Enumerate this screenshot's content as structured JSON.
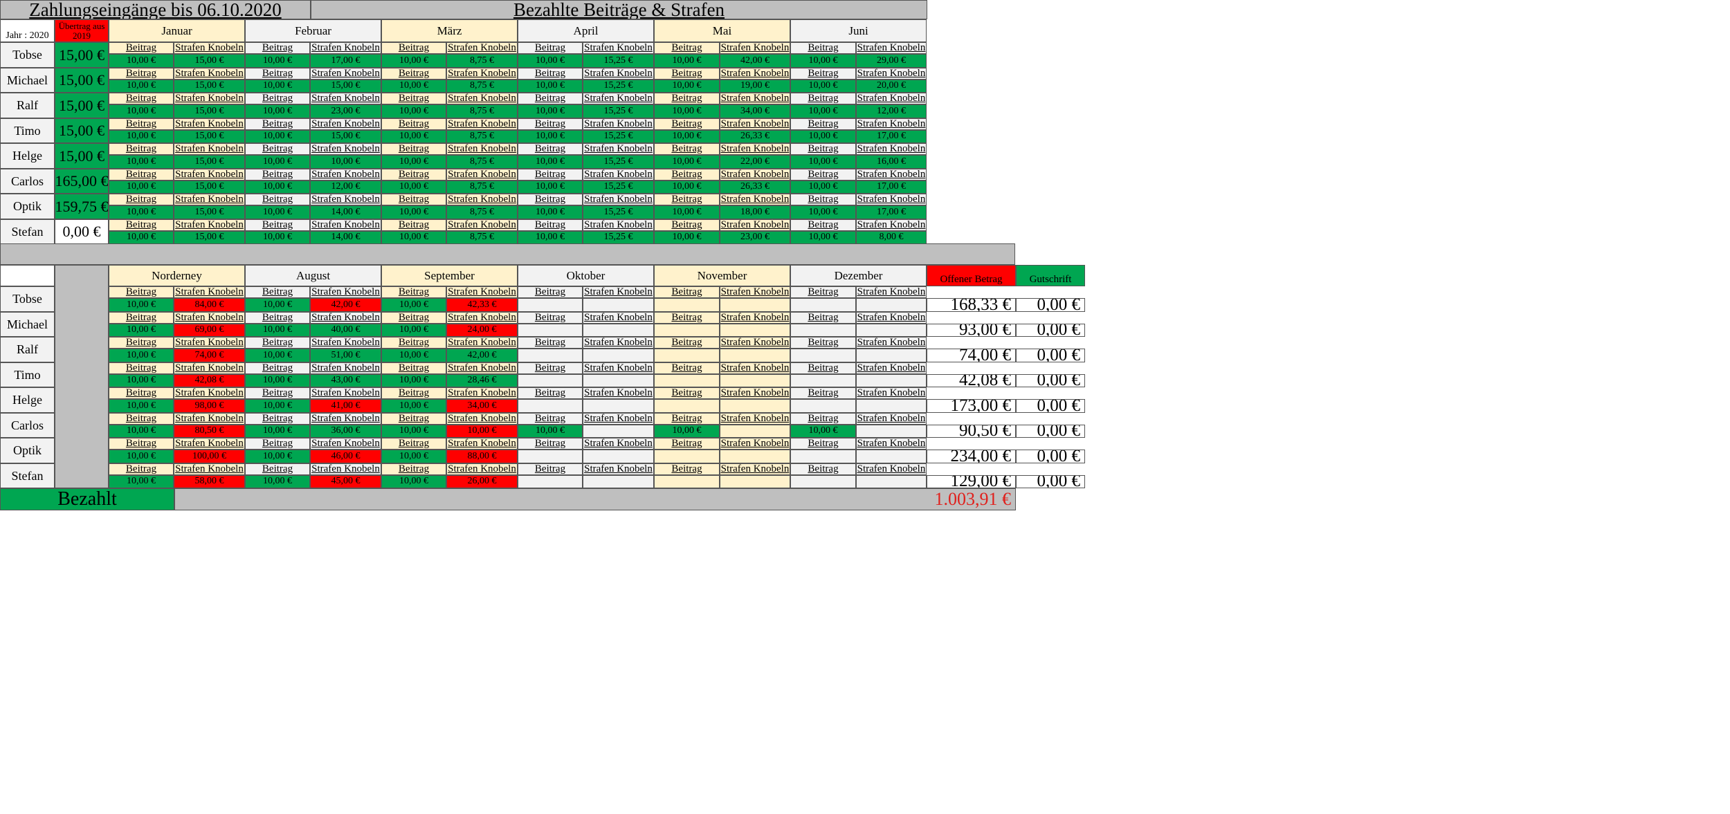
{
  "title_left": "Zahlungseingänge bis 06.10.2020",
  "title_right": "Bezahlte Beiträge & Strafen",
  "jahr_label": "Jahr : 2020",
  "uebertrag_label": "Übertrag aus 2019",
  "sub_beitrag": "Beitrag",
  "sub_strafen": "Strafen Knobeln",
  "offener_label": "Offener Betrag",
  "gutschrift_label": "Gutschrift",
  "bezahlt_label": "Bezahlt",
  "bezahlt_total": "1.003,91 €",
  "colors": {
    "green": "#00a651",
    "red": "#ff0000",
    "cream": "#fff2cc",
    "lightgray": "#f2f2f2",
    "gray": "#bfbfbf",
    "dark_red_text": "#e0201c"
  },
  "months_top": [
    "Januar",
    "Februar",
    "März",
    "April",
    "Mai",
    "Juni"
  ],
  "months_bottom": [
    "Norderney",
    "August",
    "September",
    "Oktober",
    "November",
    "Dezember"
  ],
  "top_rows": [
    {
      "name": "Tobse",
      "uebertrag": "15,00 €",
      "uebertrag_status": "green",
      "values": [
        [
          "10,00 €",
          "15,00 €"
        ],
        [
          "10,00 €",
          "17,00 €"
        ],
        [
          "10,00 €",
          "8,75 €"
        ],
        [
          "10,00 €",
          "15,25 €"
        ],
        [
          "10,00 €",
          "42,00 €"
        ],
        [
          "10,00 €",
          "29,00 €"
        ]
      ]
    },
    {
      "name": "Michael",
      "uebertrag": "15,00 €",
      "uebertrag_status": "green",
      "values": [
        [
          "10,00 €",
          "15,00 €"
        ],
        [
          "10,00 €",
          "15,00 €"
        ],
        [
          "10,00 €",
          "8,75 €"
        ],
        [
          "10,00 €",
          "15,25 €"
        ],
        [
          "10,00 €",
          "19,00 €"
        ],
        [
          "10,00 €",
          "20,00 €"
        ]
      ]
    },
    {
      "name": "Ralf",
      "uebertrag": "15,00 €",
      "uebertrag_status": "green",
      "values": [
        [
          "10,00 €",
          "15,00 €"
        ],
        [
          "10,00 €",
          "23,00 €"
        ],
        [
          "10,00 €",
          "8,75 €"
        ],
        [
          "10,00 €",
          "15,25 €"
        ],
        [
          "10,00 €",
          "34,00 €"
        ],
        [
          "10,00 €",
          "12,00 €"
        ]
      ]
    },
    {
      "name": "Timo",
      "uebertrag": "15,00 €",
      "uebertrag_status": "green",
      "values": [
        [
          "10,00 €",
          "15,00 €"
        ],
        [
          "10,00 €",
          "15,00 €"
        ],
        [
          "10,00 €",
          "8,75 €"
        ],
        [
          "10,00 €",
          "15,25 €"
        ],
        [
          "10,00 €",
          "26,33 €"
        ],
        [
          "10,00 €",
          "17,00 €"
        ]
      ]
    },
    {
      "name": "Helge",
      "uebertrag": "15,00 €",
      "uebertrag_status": "green",
      "values": [
        [
          "10,00 €",
          "15,00 €"
        ],
        [
          "10,00 €",
          "10,00 €"
        ],
        [
          "10,00 €",
          "8,75 €"
        ],
        [
          "10,00 €",
          "15,25 €"
        ],
        [
          "10,00 €",
          "22,00 €"
        ],
        [
          "10,00 €",
          "16,00 €"
        ]
      ]
    },
    {
      "name": "Carlos",
      "uebertrag": "165,00 €",
      "uebertrag_status": "green",
      "values": [
        [
          "10,00 €",
          "15,00 €"
        ],
        [
          "10,00 €",
          "12,00 €"
        ],
        [
          "10,00 €",
          "8,75 €"
        ],
        [
          "10,00 €",
          "15,25 €"
        ],
        [
          "10,00 €",
          "26,33 €"
        ],
        [
          "10,00 €",
          "17,00 €"
        ]
      ]
    },
    {
      "name": "Optik",
      "uebertrag": "159,75 €",
      "uebertrag_status": "green",
      "values": [
        [
          "10,00 €",
          "15,00 €"
        ],
        [
          "10,00 €",
          "14,00 €"
        ],
        [
          "10,00 €",
          "8,75 €"
        ],
        [
          "10,00 €",
          "15,25 €"
        ],
        [
          "10,00 €",
          "18,00 €"
        ],
        [
          "10,00 €",
          "17,00 €"
        ]
      ]
    },
    {
      "name": "Stefan",
      "uebertrag": "0,00 €",
      "uebertrag_status": "plain",
      "values": [
        [
          "10,00 €",
          "15,00 €"
        ],
        [
          "10,00 €",
          "14,00 €"
        ],
        [
          "10,00 €",
          "8,75 €"
        ],
        [
          "10,00 €",
          "15,25 €"
        ],
        [
          "10,00 €",
          "23,00 €"
        ],
        [
          "10,00 €",
          "8,00 €"
        ]
      ]
    }
  ],
  "bottom_rows": [
    {
      "name": "Tobse",
      "offen": "168,33 €",
      "gutschrift": "0,00 €",
      "cells": [
        [
          "10,00 €",
          "green",
          "84,00 €",
          "red"
        ],
        [
          "10,00 €",
          "green",
          "42,00 €",
          "red"
        ],
        [
          "10,00 €",
          "green",
          "42,33 €",
          "red"
        ],
        [
          "",
          "empty",
          "",
          "empty"
        ],
        [
          "",
          "empty",
          "",
          "empty"
        ],
        [
          "",
          "empty",
          "",
          "empty"
        ]
      ]
    },
    {
      "name": "Michael",
      "offen": "93,00 €",
      "gutschrift": "0,00 €",
      "cells": [
        [
          "10,00 €",
          "green",
          "69,00 €",
          "red"
        ],
        [
          "10,00 €",
          "green",
          "40,00 €",
          "green"
        ],
        [
          "10,00 €",
          "green",
          "24,00 €",
          "red"
        ],
        [
          "",
          "empty",
          "",
          "empty"
        ],
        [
          "",
          "empty",
          "",
          "empty"
        ],
        [
          "",
          "empty",
          "",
          "empty"
        ]
      ]
    },
    {
      "name": "Ralf",
      "offen": "74,00 €",
      "gutschrift": "0,00 €",
      "cells": [
        [
          "10,00 €",
          "green",
          "74,00 €",
          "red"
        ],
        [
          "10,00 €",
          "green",
          "51,00 €",
          "green"
        ],
        [
          "10,00 €",
          "green",
          "42,00 €",
          "green"
        ],
        [
          "",
          "empty",
          "",
          "empty"
        ],
        [
          "",
          "empty",
          "",
          "empty"
        ],
        [
          "",
          "empty",
          "",
          "empty"
        ]
      ]
    },
    {
      "name": "Timo",
      "offen": "42,08 €",
      "gutschrift": "0,00 €",
      "cells": [
        [
          "10,00 €",
          "green",
          "42,08 €",
          "red"
        ],
        [
          "10,00 €",
          "green",
          "43,00 €",
          "green"
        ],
        [
          "10,00 €",
          "green",
          "28,46 €",
          "green"
        ],
        [
          "",
          "empty",
          "",
          "empty"
        ],
        [
          "",
          "empty",
          "",
          "empty"
        ],
        [
          "",
          "empty",
          "",
          "empty"
        ]
      ]
    },
    {
      "name": "Helge",
      "offen": "173,00 €",
      "gutschrift": "0,00 €",
      "cells": [
        [
          "10,00 €",
          "green",
          "98,00 €",
          "red"
        ],
        [
          "10,00 €",
          "green",
          "41,00 €",
          "red"
        ],
        [
          "10,00 €",
          "green",
          "34,00 €",
          "red"
        ],
        [
          "",
          "empty",
          "",
          "empty"
        ],
        [
          "",
          "empty",
          "",
          "empty"
        ],
        [
          "",
          "empty",
          "",
          "empty"
        ]
      ]
    },
    {
      "name": "Carlos",
      "offen": "90,50 €",
      "gutschrift": "0,00 €",
      "cells": [
        [
          "10,00 €",
          "green",
          "80,50 €",
          "red"
        ],
        [
          "10,00 €",
          "green",
          "36,00 €",
          "green"
        ],
        [
          "10,00 €",
          "green",
          "10,00 €",
          "red"
        ],
        [
          "10,00 €",
          "green",
          "",
          "empty"
        ],
        [
          "10,00 €",
          "green",
          "",
          "empty"
        ],
        [
          "10,00 €",
          "green",
          "",
          "empty"
        ]
      ]
    },
    {
      "name": "Optik",
      "offen": "234,00 €",
      "gutschrift": "0,00 €",
      "cells": [
        [
          "10,00 €",
          "green",
          "100,00 €",
          "red"
        ],
        [
          "10,00 €",
          "green",
          "46,00 €",
          "red"
        ],
        [
          "10,00 €",
          "green",
          "88,00 €",
          "red"
        ],
        [
          "",
          "empty",
          "",
          "empty"
        ],
        [
          "",
          "empty",
          "",
          "empty"
        ],
        [
          "",
          "empty",
          "",
          "empty"
        ]
      ]
    },
    {
      "name": "Stefan",
      "offen": "129,00 €",
      "gutschrift": "0,00 €",
      "cells": [
        [
          "10,00 €",
          "green",
          "58,00 €",
          "red"
        ],
        [
          "10,00 €",
          "green",
          "45,00 €",
          "red"
        ],
        [
          "10,00 €",
          "green",
          "26,00 €",
          "red"
        ],
        [
          "",
          "empty",
          "",
          "empty"
        ],
        [
          "",
          "empty",
          "",
          "empty"
        ],
        [
          "",
          "empty",
          "",
          "empty"
        ]
      ]
    }
  ]
}
